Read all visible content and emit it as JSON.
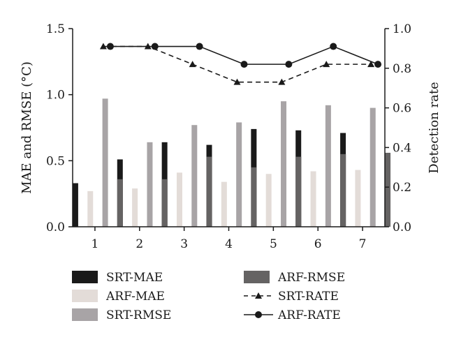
{
  "chart_data": {
    "type": "bar",
    "categories": [
      "1",
      "2",
      "3",
      "4",
      "5",
      "6",
      "7"
    ],
    "xlabel": "",
    "ylabel": "MAE and RMSE (°C)",
    "y2label": "Detection rate",
    "ylim": [
      0,
      1.5
    ],
    "y2lim": [
      0,
      1.0
    ],
    "yticks": [
      "0.0",
      "0.5",
      "1.0",
      "1.5"
    ],
    "y2ticks": [
      "0.0",
      "0.2",
      "0.4",
      "0.6",
      "0.8",
      "1.0"
    ],
    "bar_series": [
      {
        "name": "SRT-MAE",
        "color": "#1a1a1a",
        "values": [
          0.33,
          0.51,
          0.64,
          0.62,
          0.74,
          0.73,
          0.71
        ]
      },
      {
        "name": "ARF-MAE",
        "color": "#e3dcd8",
        "values": [
          0.27,
          0.29,
          0.41,
          0.34,
          0.4,
          0.42,
          0.43
        ]
      },
      {
        "name": "SRT-RMSE",
        "color": "#a8a4a6",
        "values": [
          0.97,
          0.64,
          0.77,
          0.79,
          0.95,
          0.92,
          0.9
        ]
      },
      {
        "name": "ARF-RMSE",
        "color": "#656363",
        "values": [
          0.36,
          0.36,
          0.53,
          0.45,
          0.53,
          0.55,
          0.56
        ]
      }
    ],
    "line_series": [
      {
        "name": "SRT-RATE",
        "axis": "right",
        "style": "dashed",
        "marker": "triangle",
        "values": [
          0.91,
          0.91,
          0.82,
          0.73,
          0.73,
          0.82,
          0.82
        ]
      },
      {
        "name": "ARF-RATE",
        "axis": "right",
        "style": "solid",
        "marker": "circle",
        "values": [
          0.91,
          0.91,
          0.91,
          0.82,
          0.82,
          0.91,
          0.82
        ]
      }
    ],
    "legend_placement": "bottom",
    "grid": false
  }
}
